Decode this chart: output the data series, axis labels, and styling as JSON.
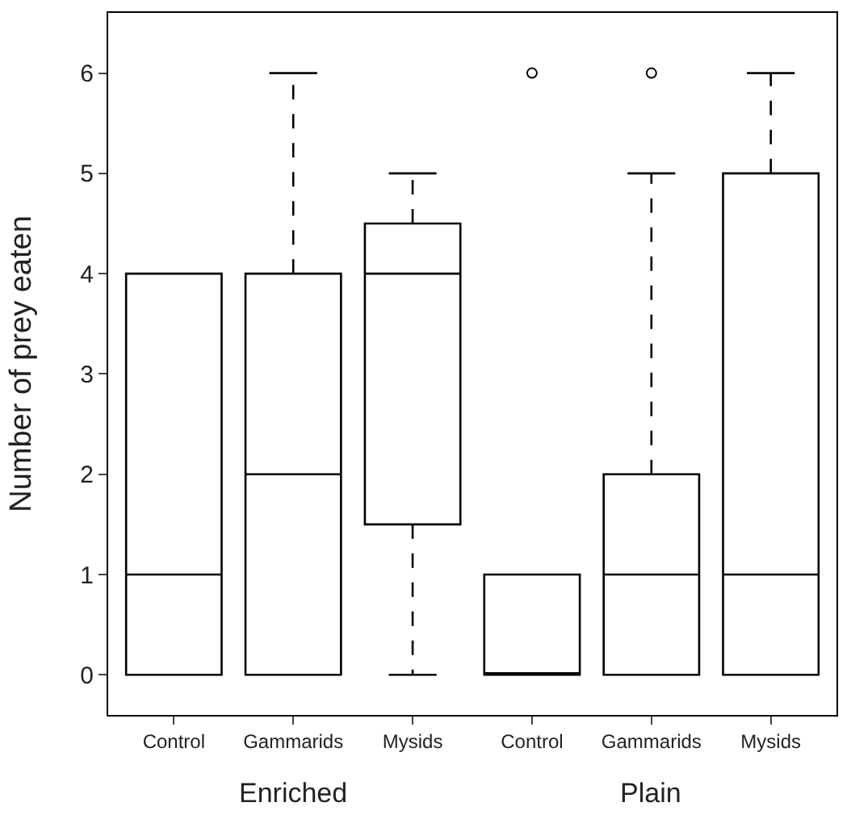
{
  "chart_data": {
    "type": "box",
    "ylabel": "Number of prey eaten",
    "categories": [
      "Control",
      "Gammarids",
      "Mysids",
      "Control",
      "Gammarids",
      "Mysids"
    ],
    "boxes": [
      {
        "low": 0,
        "q1": 0,
        "median": 1,
        "q3": 4,
        "high": 4
      },
      {
        "low": 0,
        "q1": 0,
        "median": 2,
        "q3": 4,
        "high": 6
      },
      {
        "low": 0,
        "q1": 1.5,
        "median": 4,
        "q3": 4.5,
        "high": 5
      },
      {
        "low": 0,
        "q1": 0,
        "median": 0,
        "q3": 1,
        "high": 1,
        "outliers": [
          6
        ]
      },
      {
        "low": 0,
        "q1": 0,
        "median": 1,
        "q3": 2,
        "high": 5,
        "outliers": [
          6
        ]
      },
      {
        "low": 0,
        "q1": 0,
        "median": 1,
        "q3": 5,
        "high": 6
      }
    ],
    "annotations": [
      "Enriched",
      "Plain"
    ],
    "color": "#000000",
    "ylim": [
      -0.4,
      6.6
    ],
    "yticks": [
      0,
      1,
      2,
      3,
      4,
      5,
      6
    ],
    "marker": "circle"
  }
}
